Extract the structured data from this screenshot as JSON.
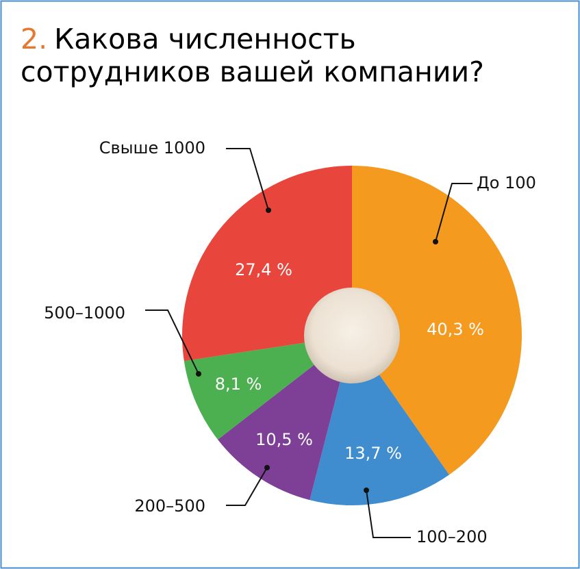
{
  "chart_data": {
    "type": "donut",
    "title_number": "2.",
    "title": [
      "Какова численность",
      "сотрудников вашей компании?"
    ],
    "categories": [
      "До 100",
      "100–200",
      "200–500",
      "500–1000",
      "Свыше 1000"
    ],
    "values": [
      40.3,
      13.7,
      10.5,
      8.1,
      27.4
    ],
    "value_labels": [
      "40,3 %",
      "13,7 %",
      "10,5 %",
      "8,1 %",
      "27,4 %"
    ],
    "colors": [
      "#f39a1f",
      "#3f8dcf",
      "#7e3f97",
      "#4caf50",
      "#e8453c"
    ],
    "title_number_color": "#e8772e"
  }
}
